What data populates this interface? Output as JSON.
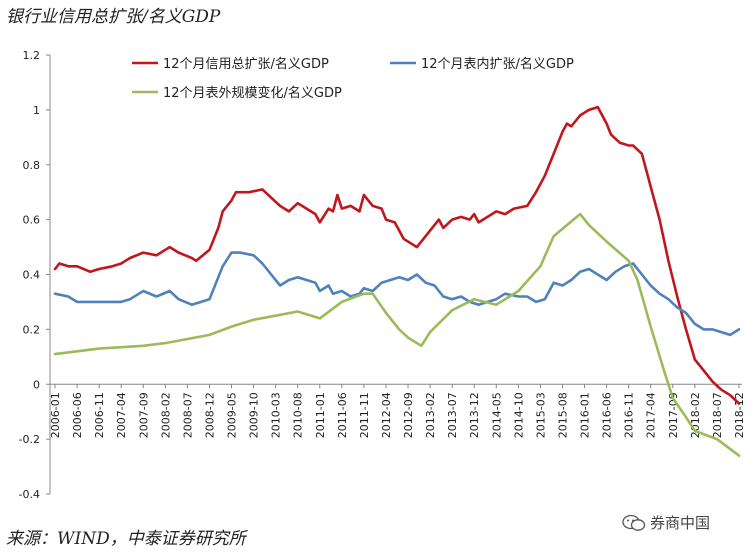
{
  "page": {
    "title": "银行业信用总扩张/名义GDP",
    "source": "来源：WIND，中泰证券研究所",
    "watermark": "券商中国"
  },
  "chart_data": {
    "type": "line",
    "title": "银行业信用总扩张/名义GDP",
    "ylim": [
      -0.4,
      1.2
    ],
    "yticks": [
      -0.4,
      -0.2,
      0,
      0.2,
      0.4,
      0.6,
      0.8,
      1,
      1.2
    ],
    "ytick_labels": [
      "-0.4",
      "-0.2",
      "0",
      "0.2",
      "0.4",
      "0.6",
      "0.8",
      "1",
      "1.2"
    ],
    "xticks": [
      "2006-01",
      "2006-06",
      "2006-11",
      "2007-04",
      "2007-09",
      "2008-02",
      "2008-07",
      "2008-12",
      "2009-05",
      "2009-10",
      "2010-03",
      "2010-08",
      "2011-01",
      "2011-06",
      "2011-11",
      "2012-04",
      "2012-09",
      "2013-02",
      "2013-07",
      "2013-12",
      "2014-05",
      "2014-10",
      "2015-03",
      "2015-08",
      "2016-01",
      "2016-06",
      "2016-11",
      "2017-04",
      "2017-09",
      "2018-02",
      "2018-07",
      "2018-12"
    ],
    "grid": false,
    "legend_position": "top",
    "series": [
      {
        "name": "12个月信用总扩张/名义GDP",
        "color": "#c0161c",
        "points": [
          [
            "2006-01",
            0.42
          ],
          [
            "2006-02",
            0.44
          ],
          [
            "2006-04",
            0.43
          ],
          [
            "2006-06",
            0.43
          ],
          [
            "2006-09",
            0.41
          ],
          [
            "2006-11",
            0.42
          ],
          [
            "2007-02",
            0.43
          ],
          [
            "2007-04",
            0.44
          ],
          [
            "2007-06",
            0.46
          ],
          [
            "2007-09",
            0.48
          ],
          [
            "2007-12",
            0.47
          ],
          [
            "2008-02",
            0.49
          ],
          [
            "2008-03",
            0.5
          ],
          [
            "2008-05",
            0.48
          ],
          [
            "2008-08",
            0.46
          ],
          [
            "2008-09",
            0.45
          ],
          [
            "2008-12",
            0.49
          ],
          [
            "2009-02",
            0.57
          ],
          [
            "2009-03",
            0.63
          ],
          [
            "2009-05",
            0.67
          ],
          [
            "2009-06",
            0.7
          ],
          [
            "2009-09",
            0.7
          ],
          [
            "2009-12",
            0.71
          ],
          [
            "2010-02",
            0.68
          ],
          [
            "2010-04",
            0.65
          ],
          [
            "2010-06",
            0.63
          ],
          [
            "2010-08",
            0.66
          ],
          [
            "2010-10",
            0.64
          ],
          [
            "2010-12",
            0.62
          ],
          [
            "2011-01",
            0.59
          ],
          [
            "2011-03",
            0.64
          ],
          [
            "2011-04",
            0.63
          ],
          [
            "2011-05",
            0.69
          ],
          [
            "2011-06",
            0.64
          ],
          [
            "2011-08",
            0.65
          ],
          [
            "2011-10",
            0.63
          ],
          [
            "2011-11",
            0.69
          ],
          [
            "2012-01",
            0.65
          ],
          [
            "2012-03",
            0.64
          ],
          [
            "2012-04",
            0.6
          ],
          [
            "2012-06",
            0.59
          ],
          [
            "2012-08",
            0.53
          ],
          [
            "2012-10",
            0.51
          ],
          [
            "2012-11",
            0.5
          ],
          [
            "2013-01",
            0.54
          ],
          [
            "2013-03",
            0.58
          ],
          [
            "2013-04",
            0.6
          ],
          [
            "2013-05",
            0.57
          ],
          [
            "2013-07",
            0.6
          ],
          [
            "2013-09",
            0.61
          ],
          [
            "2013-11",
            0.6
          ],
          [
            "2013-12",
            0.62
          ],
          [
            "2014-01",
            0.59
          ],
          [
            "2014-03",
            0.61
          ],
          [
            "2014-05",
            0.63
          ],
          [
            "2014-07",
            0.62
          ],
          [
            "2014-09",
            0.64
          ],
          [
            "2014-12",
            0.65
          ],
          [
            "2015-02",
            0.7
          ],
          [
            "2015-04",
            0.76
          ],
          [
            "2015-06",
            0.84
          ],
          [
            "2015-08",
            0.92
          ],
          [
            "2015-09",
            0.95
          ],
          [
            "2015-10",
            0.94
          ],
          [
            "2015-12",
            0.98
          ],
          [
            "2016-02",
            1.0
          ],
          [
            "2016-04",
            1.01
          ],
          [
            "2016-06",
            0.95
          ],
          [
            "2016-07",
            0.91
          ],
          [
            "2016-09",
            0.88
          ],
          [
            "2016-11",
            0.87
          ],
          [
            "2016-12",
            0.87
          ],
          [
            "2017-02",
            0.84
          ],
          [
            "2017-04",
            0.72
          ],
          [
            "2017-06",
            0.6
          ],
          [
            "2017-08",
            0.45
          ],
          [
            "2017-10",
            0.32
          ],
          [
            "2017-12",
            0.2
          ],
          [
            "2018-02",
            0.09
          ],
          [
            "2018-04",
            0.05
          ],
          [
            "2018-06",
            0.01
          ],
          [
            "2018-08",
            -0.02
          ],
          [
            "2018-10",
            -0.04
          ],
          [
            "2018-12",
            -0.07
          ]
        ]
      },
      {
        "name": "12个月表内扩张/名义GDP",
        "color": "#4f81bd",
        "points": [
          [
            "2006-01",
            0.33
          ],
          [
            "2006-04",
            0.32
          ],
          [
            "2006-06",
            0.3
          ],
          [
            "2006-11",
            0.3
          ],
          [
            "2007-04",
            0.3
          ],
          [
            "2007-06",
            0.31
          ],
          [
            "2007-09",
            0.34
          ],
          [
            "2007-12",
            0.32
          ],
          [
            "2008-03",
            0.34
          ],
          [
            "2008-05",
            0.31
          ],
          [
            "2008-08",
            0.29
          ],
          [
            "2008-12",
            0.31
          ],
          [
            "2009-03",
            0.43
          ],
          [
            "2009-05",
            0.48
          ],
          [
            "2009-07",
            0.48
          ],
          [
            "2009-10",
            0.47
          ],
          [
            "2009-12",
            0.44
          ],
          [
            "2010-02",
            0.4
          ],
          [
            "2010-04",
            0.36
          ],
          [
            "2010-06",
            0.38
          ],
          [
            "2010-08",
            0.39
          ],
          [
            "2010-10",
            0.38
          ],
          [
            "2010-12",
            0.37
          ],
          [
            "2011-01",
            0.34
          ],
          [
            "2011-03",
            0.36
          ],
          [
            "2011-04",
            0.33
          ],
          [
            "2011-06",
            0.34
          ],
          [
            "2011-08",
            0.32
          ],
          [
            "2011-10",
            0.33
          ],
          [
            "2011-11",
            0.35
          ],
          [
            "2012-01",
            0.34
          ],
          [
            "2012-03",
            0.37
          ],
          [
            "2012-05",
            0.38
          ],
          [
            "2012-07",
            0.39
          ],
          [
            "2012-09",
            0.38
          ],
          [
            "2012-11",
            0.4
          ],
          [
            "2013-01",
            0.37
          ],
          [
            "2013-03",
            0.36
          ],
          [
            "2013-05",
            0.32
          ],
          [
            "2013-07",
            0.31
          ],
          [
            "2013-09",
            0.32
          ],
          [
            "2013-11",
            0.3
          ],
          [
            "2014-01",
            0.29
          ],
          [
            "2014-03",
            0.3
          ],
          [
            "2014-05",
            0.31
          ],
          [
            "2014-07",
            0.33
          ],
          [
            "2014-10",
            0.32
          ],
          [
            "2014-12",
            0.32
          ],
          [
            "2015-02",
            0.3
          ],
          [
            "2015-04",
            0.31
          ],
          [
            "2015-06",
            0.37
          ],
          [
            "2015-08",
            0.36
          ],
          [
            "2015-10",
            0.38
          ],
          [
            "2015-12",
            0.41
          ],
          [
            "2016-02",
            0.42
          ],
          [
            "2016-04",
            0.4
          ],
          [
            "2016-06",
            0.38
          ],
          [
            "2016-08",
            0.41
          ],
          [
            "2016-10",
            0.43
          ],
          [
            "2016-12",
            0.44
          ],
          [
            "2017-02",
            0.4
          ],
          [
            "2017-04",
            0.36
          ],
          [
            "2017-06",
            0.33
          ],
          [
            "2017-08",
            0.31
          ],
          [
            "2017-10",
            0.28
          ],
          [
            "2017-12",
            0.26
          ],
          [
            "2018-02",
            0.22
          ],
          [
            "2018-04",
            0.2
          ],
          [
            "2018-06",
            0.2
          ],
          [
            "2018-08",
            0.19
          ],
          [
            "2018-10",
            0.18
          ],
          [
            "2018-12",
            0.2
          ]
        ]
      },
      {
        "name": "12个月表外规模变化/名义GDP",
        "color": "#9bbb59",
        "points": [
          [
            "2006-01",
            0.11
          ],
          [
            "2006-06",
            0.12
          ],
          [
            "2006-11",
            0.13
          ],
          [
            "2007-04",
            0.135
          ],
          [
            "2007-09",
            0.14
          ],
          [
            "2008-02",
            0.15
          ],
          [
            "2008-07",
            0.165
          ],
          [
            "2008-12",
            0.18
          ],
          [
            "2009-05",
            0.21
          ],
          [
            "2009-10",
            0.235
          ],
          [
            "2010-03",
            0.25
          ],
          [
            "2010-08",
            0.265
          ],
          [
            "2011-01",
            0.24
          ],
          [
            "2011-06",
            0.3
          ],
          [
            "2011-11",
            0.33
          ],
          [
            "2012-01",
            0.33
          ],
          [
            "2012-04",
            0.26
          ],
          [
            "2012-07",
            0.2
          ],
          [
            "2012-09",
            0.17
          ],
          [
            "2012-12",
            0.14
          ],
          [
            "2013-02",
            0.19
          ],
          [
            "2013-07",
            0.27
          ],
          [
            "2013-12",
            0.31
          ],
          [
            "2014-05",
            0.29
          ],
          [
            "2014-10",
            0.34
          ],
          [
            "2015-03",
            0.43
          ],
          [
            "2015-06",
            0.54
          ],
          [
            "2015-09",
            0.58
          ],
          [
            "2015-12",
            0.62
          ],
          [
            "2016-02",
            0.58
          ],
          [
            "2016-06",
            0.52
          ],
          [
            "2016-11",
            0.45
          ],
          [
            "2017-01",
            0.38
          ],
          [
            "2017-04",
            0.21
          ],
          [
            "2017-07",
            0.05
          ],
          [
            "2017-09",
            -0.05
          ],
          [
            "2017-12",
            -0.12
          ],
          [
            "2018-02",
            -0.17
          ],
          [
            "2018-07",
            -0.2
          ],
          [
            "2018-12",
            -0.26
          ]
        ]
      }
    ]
  }
}
